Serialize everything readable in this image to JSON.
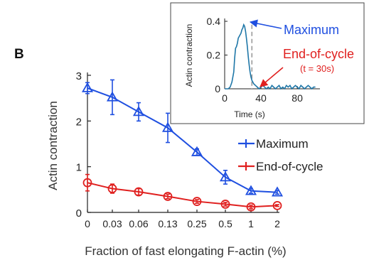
{
  "panel_label": "B",
  "colors": {
    "maximum": "#1f4fe0",
    "end_of_cycle": "#e0201f",
    "inset_trace": "#1f77a8",
    "dashed_line": "#9a9a9a",
    "axis": "#222222"
  },
  "chart_data": [
    {
      "type": "line",
      "xlabel": "Fraction of fast elongating F-actin (%)",
      "ylabel": "Actin contraction",
      "categories": [
        "0",
        "0.03",
        "0.06",
        "0.13",
        "0.25",
        "0.5",
        "1",
        "2"
      ],
      "ylim": [
        0,
        3
      ],
      "yticks": [
        "0",
        "1",
        "2",
        "3"
      ],
      "legend_position": "right",
      "series": [
        {
          "name": "Maximum",
          "marker": "triangle",
          "values": [
            2.72,
            2.52,
            2.2,
            1.85,
            1.32,
            0.77,
            0.47,
            0.44
          ],
          "errors": [
            0.12,
            0.38,
            0.2,
            0.32,
            0.07,
            0.15,
            0.05,
            0.04
          ]
        },
        {
          "name": "End-of-cycle",
          "marker": "circle",
          "values": [
            0.65,
            0.52,
            0.45,
            0.35,
            0.24,
            0.18,
            0.12,
            0.15
          ],
          "errors": [
            0.18,
            0.1,
            0.07,
            0.05,
            0.04,
            0.04,
            0.04,
            0.02
          ]
        }
      ]
    },
    {
      "type": "line",
      "inset": true,
      "xlabel": "Time (s)",
      "ylabel": "Actin contraction",
      "xlim": [
        0,
        105
      ],
      "ylim": [
        0,
        0.4
      ],
      "xticks": [
        "0",
        "40",
        "80"
      ],
      "yticks": [
        "0",
        "0.2",
        "0.4"
      ],
      "trace": {
        "x": [
          0,
          4,
          6,
          8,
          10,
          11,
          12,
          13,
          14,
          15,
          16,
          17,
          18,
          19,
          20,
          21,
          22,
          23,
          24,
          25,
          26,
          27,
          28,
          29,
          30,
          31,
          32,
          34,
          36,
          38,
          40,
          42,
          44,
          46,
          48,
          50,
          52,
          54,
          56,
          58,
          60,
          62,
          64,
          66,
          68,
          70,
          72,
          74,
          76,
          78,
          80,
          82,
          84,
          86,
          88,
          90,
          92,
          94,
          96,
          98,
          100
        ],
        "y": [
          0.0,
          0.0,
          0.01,
          0.04,
          0.1,
          0.18,
          0.24,
          0.25,
          0.27,
          0.3,
          0.31,
          0.32,
          0.33,
          0.35,
          0.36,
          0.38,
          0.37,
          0.34,
          0.3,
          0.25,
          0.19,
          0.14,
          0.1,
          0.07,
          0.05,
          0.04,
          0.03,
          0.02,
          0.01,
          0.0,
          0.01,
          0.02,
          0.01,
          0.0,
          0.01,
          0.0,
          0.02,
          0.01,
          0.0,
          0.01,
          0.02,
          0.0,
          0.01,
          0.0,
          0.02,
          0.01,
          0.02,
          0.0,
          0.01,
          0.02,
          0.01,
          0.0,
          0.02,
          0.01,
          0.0,
          0.01,
          0.02,
          0.01,
          0.0,
          0.01,
          0.01
        ]
      },
      "dashed_x": 30,
      "annotations": {
        "maximum": "Maximum",
        "end_of_cycle": "End-of-cycle",
        "end_of_cycle_sub": "(t = 30s)"
      }
    }
  ]
}
